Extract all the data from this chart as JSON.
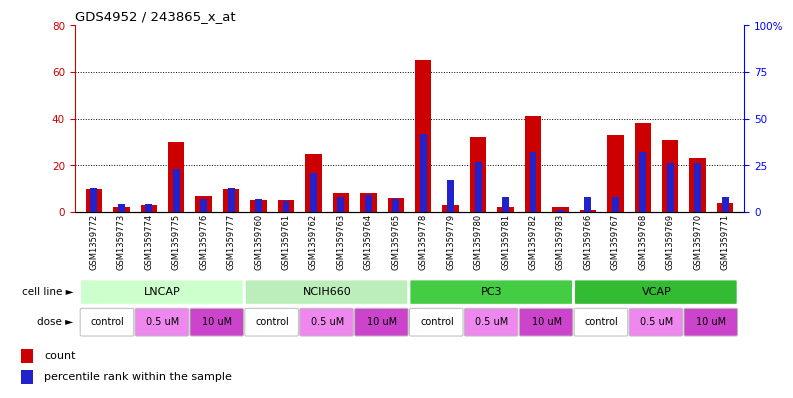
{
  "title": "GDS4952 / 243865_x_at",
  "samples": [
    "GSM1359772",
    "GSM1359773",
    "GSM1359774",
    "GSM1359775",
    "GSM1359776",
    "GSM1359777",
    "GSM1359760",
    "GSM1359761",
    "GSM1359762",
    "GSM1359763",
    "GSM1359764",
    "GSM1359765",
    "GSM1359778",
    "GSM1359779",
    "GSM1359780",
    "GSM1359781",
    "GSM1359782",
    "GSM1359783",
    "GSM1359766",
    "GSM1359767",
    "GSM1359768",
    "GSM1359769",
    "GSM1359770",
    "GSM1359771"
  ],
  "red_values": [
    10,
    2,
    3,
    30,
    7,
    10,
    5,
    5,
    25,
    8,
    8,
    6,
    65,
    3,
    32,
    2,
    41,
    2,
    1,
    33,
    38,
    31,
    23,
    4
  ],
  "blue_values": [
    13,
    4,
    4,
    23,
    7,
    13,
    7,
    6,
    21,
    8,
    9,
    7,
    42,
    17,
    27,
    8,
    32,
    1,
    8,
    8,
    32,
    26,
    26,
    8
  ],
  "cell_line_groups": [
    {
      "label": "LNCAP",
      "start": 0,
      "end": 6,
      "color": "#ccffcc"
    },
    {
      "label": "NCIH660",
      "start": 6,
      "end": 12,
      "color": "#bbeebb"
    },
    {
      "label": "PC3",
      "start": 12,
      "end": 18,
      "color": "#44cc44"
    },
    {
      "label": "VCAP",
      "start": 18,
      "end": 24,
      "color": "#33bb33"
    }
  ],
  "dose_groups": [
    {
      "label": "control",
      "start": 0,
      "end": 2,
      "color": "#ffffff"
    },
    {
      "label": "0.5 uM",
      "start": 2,
      "end": 4,
      "color": "#ee88ee"
    },
    {
      "label": "10 uM",
      "start": 4,
      "end": 6,
      "color": "#cc44cc"
    },
    {
      "label": "control",
      "start": 6,
      "end": 8,
      "color": "#ffffff"
    },
    {
      "label": "0.5 uM",
      "start": 8,
      "end": 10,
      "color": "#ee88ee"
    },
    {
      "label": "10 uM",
      "start": 10,
      "end": 12,
      "color": "#cc44cc"
    },
    {
      "label": "control",
      "start": 12,
      "end": 14,
      "color": "#ffffff"
    },
    {
      "label": "0.5 uM",
      "start": 14,
      "end": 16,
      "color": "#ee88ee"
    },
    {
      "label": "10 uM",
      "start": 16,
      "end": 18,
      "color": "#cc44cc"
    },
    {
      "label": "control",
      "start": 18,
      "end": 20,
      "color": "#ffffff"
    },
    {
      "label": "0.5 uM",
      "start": 20,
      "end": 22,
      "color": "#ee88ee"
    },
    {
      "label": "10 uM",
      "start": 22,
      "end": 24,
      "color": "#cc44cc"
    }
  ],
  "left_ylim": [
    0,
    80
  ],
  "right_ylim": [
    0,
    100
  ],
  "left_yticks": [
    0,
    20,
    40,
    60,
    80
  ],
  "right_yticks": [
    0,
    25,
    50,
    75,
    100
  ],
  "right_yticklabels": [
    "0",
    "25",
    "50",
    "75",
    "100%"
  ],
  "grid_lines": [
    20,
    40,
    60
  ],
  "bar_color_red": "#cc0000",
  "bar_color_blue": "#2222cc",
  "red_bar_width": 0.6,
  "blue_bar_width": 0.25
}
